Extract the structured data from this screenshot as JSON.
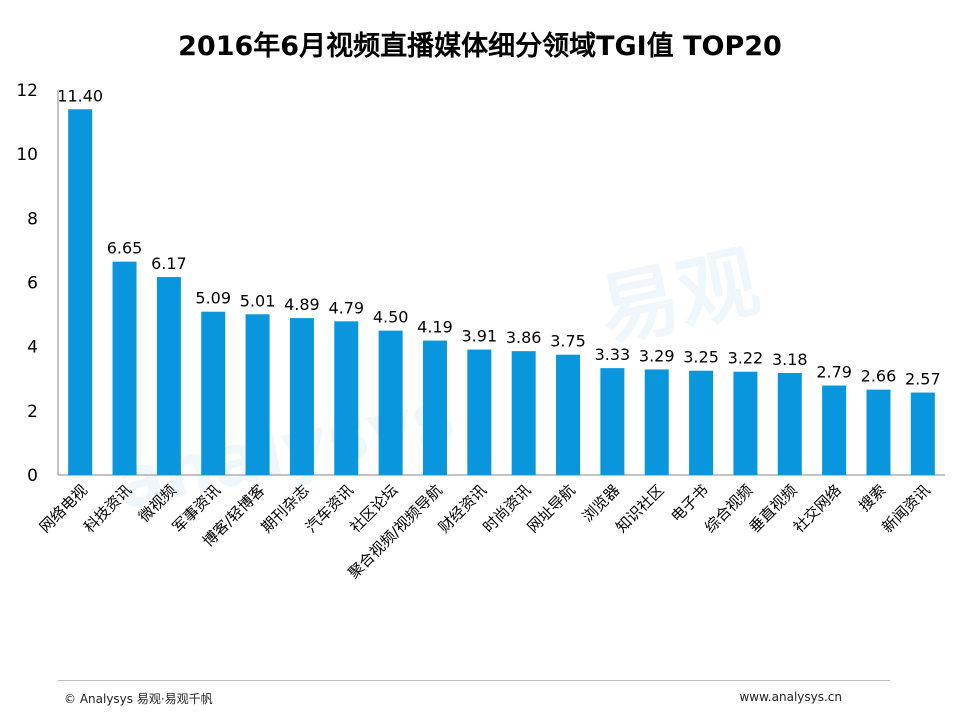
{
  "chart_data": {
    "type": "bar",
    "title": "2016年6月视频直播媒体细分领域TGI值  TOP20",
    "xlabel": "",
    "ylabel": "",
    "ylim": [
      0,
      12
    ],
    "yticks": [
      0,
      2,
      4,
      6,
      8,
      10,
      12
    ],
    "grid": false,
    "bar_color": "#0a96dc",
    "categories": [
      "网络电视",
      "科技资讯",
      "微视频",
      "军事资讯",
      "博客/轻博客",
      "期刊杂志",
      "汽车资讯",
      "社区论坛",
      "聚合视频/视频导航",
      "财经资讯",
      "时尚资讯",
      "网址导航",
      "浏览器",
      "知识社区",
      "电子书",
      "综合视频",
      "垂直视频",
      "社交网络",
      "搜索",
      "新闻资讯"
    ],
    "values": [
      11.4,
      6.65,
      6.17,
      5.09,
      5.01,
      4.89,
      4.79,
      4.5,
      4.19,
      3.91,
      3.86,
      3.75,
      3.33,
      3.29,
      3.25,
      3.22,
      3.18,
      2.79,
      2.66,
      2.57
    ],
    "value_labels": [
      "11.40",
      "6.65",
      "6.17",
      "5.09",
      "5.01",
      "4.89",
      "4.79",
      "4.50",
      "4.19",
      "3.91",
      "3.86",
      "3.75",
      "3.33",
      "3.29",
      "3.25",
      "3.22",
      "3.18",
      "2.79",
      "2.66",
      "2.57"
    ]
  },
  "footer": {
    "copyright": "© Analysys 易观·易观千帆",
    "website": "www.analysys.cn"
  }
}
